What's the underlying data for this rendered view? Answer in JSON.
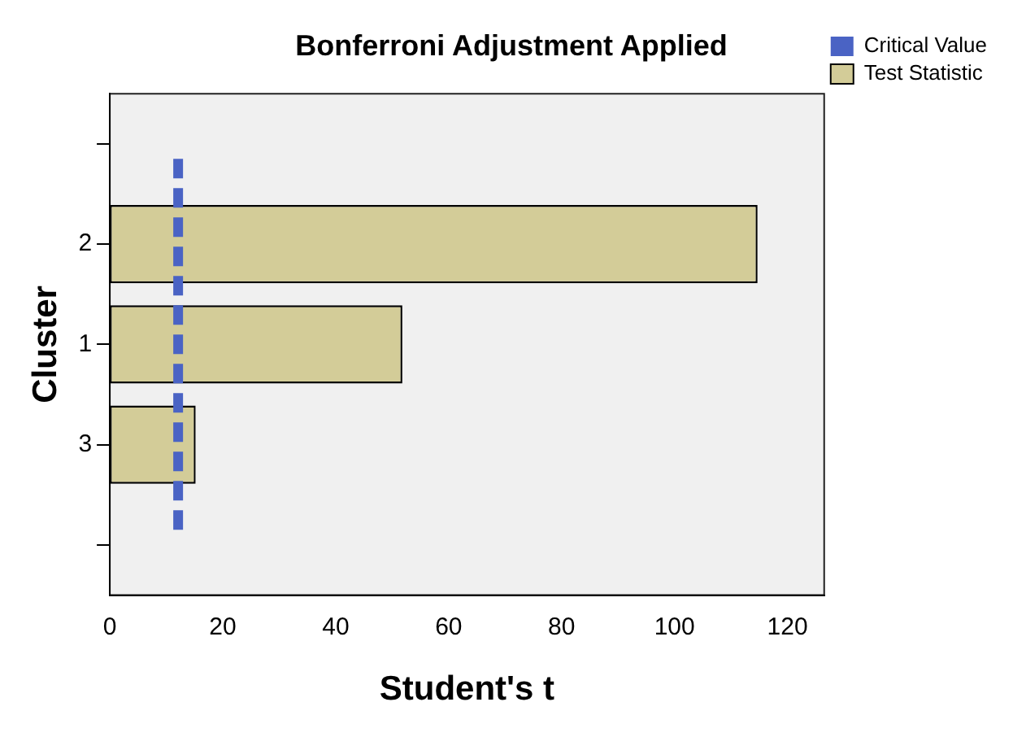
{
  "chart_data": {
    "type": "bar",
    "orientation": "horizontal",
    "title": "Bonferroni Adjustment Applied",
    "xlabel": "Student's t",
    "ylabel": "Cluster",
    "categories": [
      null,
      "2",
      "1",
      "3",
      null
    ],
    "series": [
      {
        "name": "Test Statistic",
        "color": "#d3cc98",
        "values": [
          null,
          114.7,
          51.8,
          15.2,
          null
        ]
      }
    ],
    "xlim": [
      0,
      126.5
    ],
    "xticks": [
      0,
      20,
      40,
      60,
      80,
      100,
      120
    ],
    "ref_lines": [
      {
        "axis": "x",
        "value": 12.1,
        "label": "Critical Value",
        "color": "#4a63c4",
        "line_style": "dashed"
      }
    ],
    "legend": "top right",
    "grid": false
  }
}
